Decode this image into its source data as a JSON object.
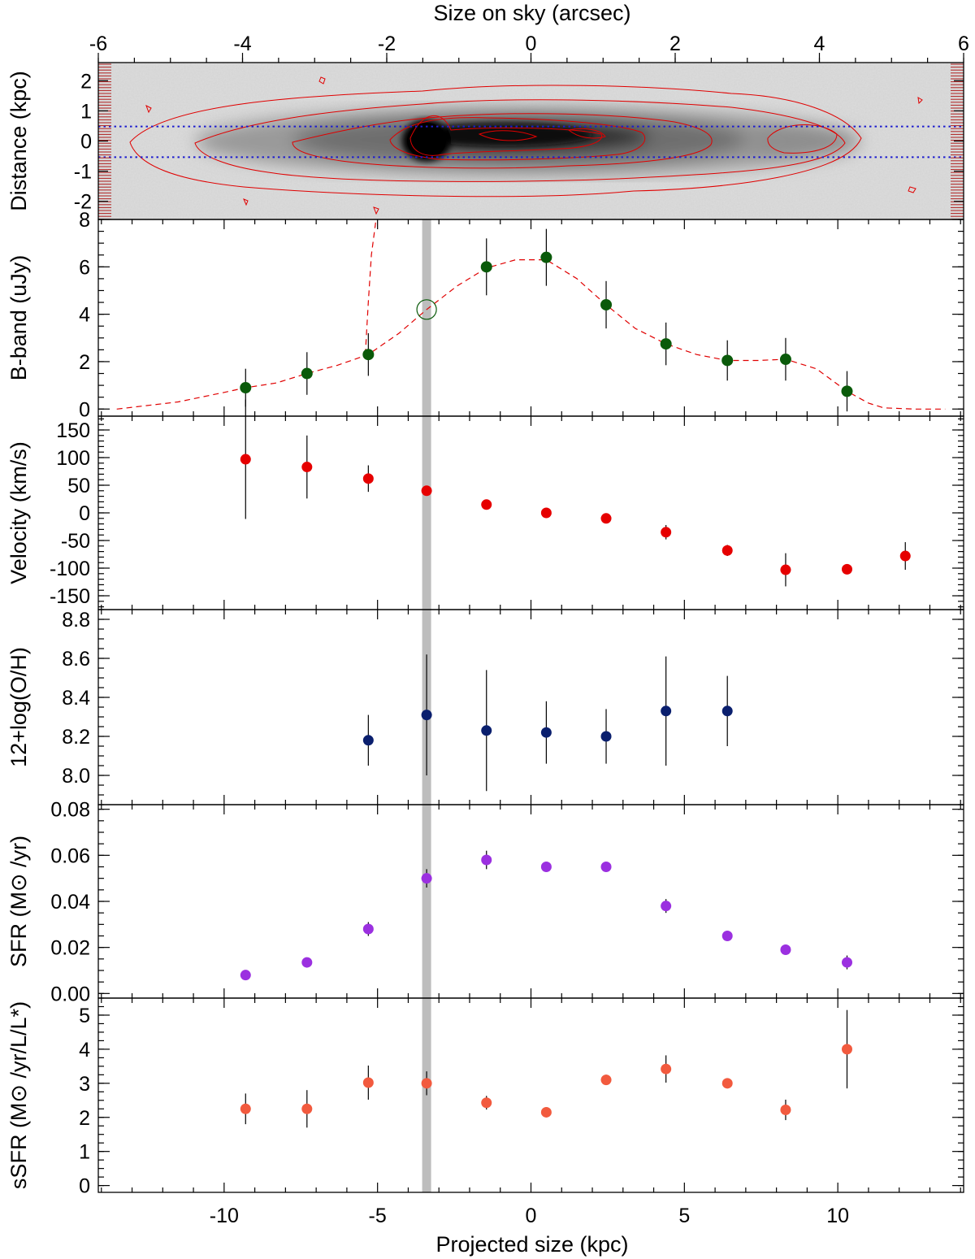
{
  "figure": {
    "top_axis_title": "Size on sky (arcsec)",
    "bottom_axis_title": "Projected size (kpc)"
  },
  "colors": {
    "bband": "#0a5a0a",
    "velocity": "#e60000",
    "metallicity": "#0a1f6e",
    "sfr": "#9b30e0",
    "ssfr": "#f25a3e",
    "contours": "#e00000",
    "slit": "#1c1ccf",
    "highlight": "#bdbdbd"
  },
  "chart_data": [
    {
      "type": "heatmap",
      "name": "image",
      "ylabel": "Distance (kpc)",
      "x2label": "Size on sky (arcsec)",
      "x2lim": [
        -6,
        6
      ],
      "x2ticks": [
        -6,
        -4,
        -2,
        0,
        2,
        4,
        6
      ],
      "ylim": [
        -2.6,
        2.6
      ],
      "yticks": [
        -2,
        -1,
        0,
        1,
        2
      ],
      "yticklabels": [
        "-2",
        "-1",
        "0",
        "1",
        "2"
      ],
      "slit_lines_y": [
        0.5,
        -0.5
      ]
    },
    {
      "type": "scatter",
      "name": "bband",
      "ylabel": "B-band (uJy)",
      "ylim": [
        -0.3,
        8.0
      ],
      "yticks": [
        0,
        2,
        4,
        6,
        8
      ],
      "yticklabels": [
        "0",
        "2",
        "4",
        "6",
        "8"
      ],
      "x": [
        -9.3,
        -7.3,
        -5.3,
        -1.45,
        0.5,
        2.45,
        4.4,
        6.4,
        8.3,
        10.3
      ],
      "y": [
        0.9,
        1.5,
        2.3,
        6.0,
        6.4,
        4.4,
        2.75,
        2.05,
        2.1,
        0.75
      ],
      "err": [
        0.8,
        0.9,
        0.9,
        1.2,
        1.2,
        1.0,
        0.9,
        0.85,
        0.9,
        0.85
      ],
      "open_marker": {
        "x": -3.4,
        "y": 4.2
      },
      "model_curve": {
        "x": [
          -13.5,
          -11.5,
          -10,
          -9.3,
          -8.3,
          -7.3,
          -6.3,
          -5.3,
          -4.3,
          -3.4,
          -2.4,
          -1.45,
          -0.5,
          0.5,
          1.5,
          2.45,
          3.4,
          4.4,
          5.4,
          6.4,
          7.4,
          8.3,
          9.3,
          10.3,
          11.0,
          11.5,
          12.5,
          13.5
        ],
        "y": [
          0.0,
          0.3,
          0.7,
          0.9,
          1.1,
          1.5,
          1.85,
          2.3,
          3.2,
          4.2,
          5.2,
          5.95,
          6.3,
          6.3,
          5.5,
          4.4,
          3.4,
          2.75,
          2.3,
          2.05,
          2.05,
          2.1,
          1.7,
          0.75,
          0.25,
          0.05,
          0.0,
          0.0
        ]
      },
      "nucleus_profile": {
        "x": [
          -5.4,
          -5.3,
          -5.2,
          -5.05
        ],
        "y": [
          2.3,
          4.5,
          6.5,
          8.0
        ]
      }
    },
    {
      "type": "scatter",
      "name": "velocity",
      "ylabel": "Velocity (km/s)",
      "ylim": [
        -175,
        175
      ],
      "yticks": [
        -150,
        -100,
        -50,
        0,
        50,
        100,
        150
      ],
      "yticklabels": [
        "-150",
        "-100",
        "-50",
        "0",
        "50",
        "100",
        "150"
      ],
      "x": [
        -9.3,
        -7.3,
        -5.3,
        -3.4,
        -1.45,
        0.5,
        2.45,
        4.4,
        6.4,
        8.3,
        10.3,
        12.2
      ],
      "y": [
        97,
        83,
        62,
        40,
        15,
        0,
        -10,
        -35,
        -68,
        -103,
        -102,
        -78
      ],
      "err": [
        108,
        57,
        24,
        5,
        5,
        5,
        8,
        13,
        10,
        30,
        7,
        25
      ]
    },
    {
      "type": "scatter",
      "name": "metallicity",
      "ylabel": "12+log(O/H)",
      "ylim": [
        7.85,
        8.85
      ],
      "yticks": [
        8.0,
        8.2,
        8.4,
        8.6,
        8.8
      ],
      "yticklabels": [
        "8.0",
        "8.2",
        "8.4",
        "8.6",
        "8.8"
      ],
      "x": [
        -5.3,
        -3.4,
        -1.45,
        0.5,
        2.45,
        4.4,
        6.4
      ],
      "y": [
        8.18,
        8.31,
        8.23,
        8.22,
        8.2,
        8.33,
        8.33
      ],
      "err": [
        0.13,
        0.31,
        0.31,
        0.16,
        0.14,
        0.28,
        0.18
      ]
    },
    {
      "type": "scatter",
      "name": "sfr",
      "ylabel": "SFR (M⊙ /yr)",
      "ylim": [
        -0.002,
        0.082
      ],
      "yticks": [
        0.0,
        0.02,
        0.04,
        0.06,
        0.08
      ],
      "yticklabels": [
        "0.00",
        "0.02",
        "0.04",
        "0.06",
        "0.08"
      ],
      "x": [
        -9.3,
        -7.3,
        -5.3,
        -3.4,
        -1.45,
        0.5,
        2.45,
        4.4,
        6.4,
        8.3,
        10.3
      ],
      "y": [
        0.008,
        0.0135,
        0.028,
        0.05,
        0.058,
        0.055,
        0.055,
        0.038,
        0.025,
        0.019,
        0.0135
      ],
      "err": [
        0.001,
        0.002,
        0.003,
        0.004,
        0.004,
        0.002,
        0.002,
        0.003,
        0.002,
        0.002,
        0.003
      ]
    },
    {
      "type": "scatter",
      "name": "ssfr",
      "ylabel": "sSFR (M⊙ /yr/L/L*)",
      "ylim": [
        -0.2,
        5.5
      ],
      "yticks": [
        0,
        1,
        2,
        3,
        4,
        5
      ],
      "yticklabels": [
        "0",
        "1",
        "2",
        "3",
        "4",
        "5"
      ],
      "x": [
        -9.3,
        -7.3,
        -5.3,
        -3.4,
        -1.45,
        0.5,
        2.45,
        4.4,
        6.4,
        8.3,
        10.3
      ],
      "y": [
        2.25,
        2.25,
        3.02,
        3.0,
        2.43,
        2.15,
        3.1,
        3.42,
        3.0,
        2.22,
        4.0
      ],
      "err": [
        0.45,
        0.55,
        0.5,
        0.35,
        0.2,
        0.1,
        0.15,
        0.4,
        0.1,
        0.3,
        1.15
      ]
    }
  ],
  "x_axis": {
    "label": "Projected size (kpc)",
    "xlim": [
      -14.1,
      14.1
    ],
    "ticks": [
      -10,
      -5,
      0,
      5,
      10
    ],
    "ticklabels": [
      "-10",
      "-5",
      "0",
      "5",
      "10"
    ],
    "highlight_x": -3.4
  }
}
